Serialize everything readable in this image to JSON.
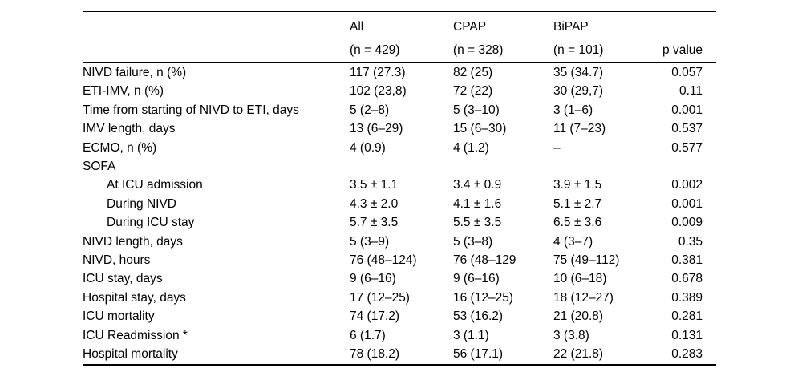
{
  "colors": {
    "text": "#000000",
    "background": "#ffffff",
    "rule": "#000000"
  },
  "table": {
    "columns": {
      "label": {
        "line1": "",
        "line2": ""
      },
      "all": {
        "line1": "All",
        "line2": "(n = 429)"
      },
      "cpap": {
        "line1": "CPAP",
        "line2": "(n = 328)"
      },
      "bipap": {
        "line1": "BiPAP",
        "line2": "(n = 101)"
      },
      "pvalue": {
        "line1": "",
        "line2": "p value"
      }
    },
    "rows": [
      {
        "label": "NIVD failure, n (%)",
        "all": "117 (27.3)",
        "cpap": "82 (25)",
        "bipap": "35 (34.7)",
        "p": "0.057"
      },
      {
        "label": "ETI-IMV, n (%)",
        "all": "102 (23,8)",
        "cpap": "72 (22)",
        "bipap": "30 (29,7)",
        "p": "0.11"
      },
      {
        "label": "Time from starting of NIVD to ETI, days",
        "all": "5 (2–8)",
        "cpap": "5 (3–10)",
        "bipap": "3 (1–6)",
        "p": "0.001"
      },
      {
        "label": "IMV length, days",
        "all": "13 (6–29)",
        "cpap": "15 (6–30)",
        "bipap": "11 (7–23)",
        "p": "0.537"
      },
      {
        "label": "ECMO, n (%)",
        "all": "4 (0.9)",
        "cpap": "4 (1.2)",
        "bipap": "–",
        "p": "0.577"
      },
      {
        "label": "SOFA",
        "all": "",
        "cpap": "",
        "bipap": "",
        "p": ""
      },
      {
        "label": "At ICU admission",
        "all": "3.5 ± 1.1",
        "cpap": "3.4 ± 0.9",
        "bipap": "3.9 ± 1.5",
        "p": "0.002"
      },
      {
        "label": "During NIVD",
        "all": "4.3 ± 2.0",
        "cpap": "4.1 ± 1.6",
        "bipap": "5.1 ± 2.7",
        "p": "0.001"
      },
      {
        "label": "During ICU stay",
        "all": "5.7 ± 3.5",
        "cpap": "5.5 ± 3.5",
        "bipap": "6.5 ± 3.6",
        "p": "0.009"
      },
      {
        "label": "NIVD length, days",
        "all": "5 (3–9)",
        "cpap": "5 (3–8)",
        "bipap": "4 (3–7)",
        "p": "0.35"
      },
      {
        "label": "NIVD, hours",
        "all": "76 (48–124)",
        "cpap": "76 (48–129",
        "bipap": "75 (49–112)",
        "p": "0.381"
      },
      {
        "label": "ICU stay, days",
        "all": "9 (6–16)",
        "cpap": "9 (6–16)",
        "bipap": "10 (6–18)",
        "p": "0.678"
      },
      {
        "label": "Hospital stay, days",
        "all": "17 (12–25)",
        "cpap": "16 (12–25)",
        "bipap": "18 (12–27)",
        "p": "0.389"
      },
      {
        "label": "ICU mortality",
        "all": "74 (17.2)",
        "cpap": "53 (16.2)",
        "bipap": "21 (20.8)",
        "p": "0.281"
      },
      {
        "label": "ICU Readmission *",
        "all": "6 (1.7)",
        "cpap": "3 (1.1)",
        "bipap": "3 (3.8)",
        "p": "0.131"
      },
      {
        "label": "Hospital mortality",
        "all": "78 (18.2)",
        "cpap": "56 (17.1)",
        "bipap": "22 (21.8)",
        "p": "0.283"
      }
    ]
  }
}
